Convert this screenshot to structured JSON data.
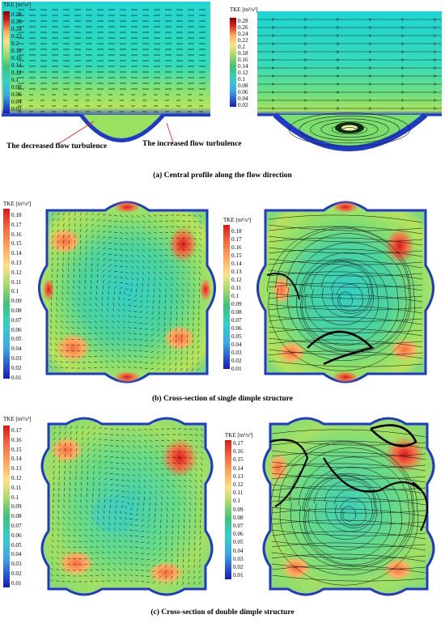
{
  "legend_title": "TKE [m²/s²]",
  "panel_a": {
    "caption": "(a) Central profile along the flow direction",
    "annotation_left": "The decreased flow turbulence",
    "annotation_right": "The increased flow turbulence",
    "legend_ticks": [
      "0.28",
      "0.26",
      "0.24",
      "0.22",
      "0.2",
      "0.18",
      "0.16",
      "0.14",
      "0.12",
      "0.1",
      "0.08",
      "0.06",
      "0.04",
      "0.02"
    ]
  },
  "panel_b": {
    "caption": "(b) Cross-section of single dimple structure",
    "legend_ticks": [
      "0.18",
      "0.17",
      "0.16",
      "0.15",
      "0.14",
      "0.13",
      "0.12",
      "0.11",
      "0.1",
      "0.09",
      "0.08",
      "0.07",
      "0.06",
      "0.05",
      "0.04",
      "0.03",
      "0.02",
      "0.01"
    ]
  },
  "panel_c": {
    "caption": "(c) Cross-section of double dimple structure",
    "legend_ticks": [
      "0.17",
      "0.16",
      "0.15",
      "0.14",
      "0.13",
      "0.12",
      "0.11",
      "0.1",
      "0.09",
      "0.08",
      "0.07",
      "0.06",
      "0.05",
      "0.04",
      "0.03",
      "0.02",
      "0.01"
    ]
  },
  "colors": [
    "#8b0000",
    "#d7191c",
    "#f46d43",
    "#fdae61",
    "#fee08b",
    "#d9ef8b",
    "#a6d96a",
    "#66bd63",
    "#3fc07a",
    "#33d1c6",
    "#3ba8e6",
    "#2166ac",
    "#1a1ab8"
  ]
}
